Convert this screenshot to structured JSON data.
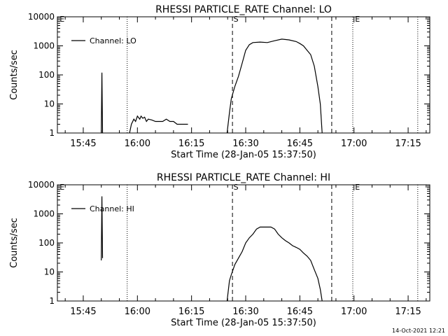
{
  "footer_timestamp": "14-Oct-2021 12:21",
  "chart_data": [
    {
      "type": "line",
      "title": "RHESSI PARTICLE_RATE Channel: LO",
      "xlabel": "Start Time (28-Jan-05 15:37:50)",
      "ylabel": "Counts/sec",
      "xlim": [
        "15:37:50",
        "17:21:00"
      ],
      "ylim": [
        1,
        10000
      ],
      "yscale": "log",
      "x_ticks": [
        "15:45",
        "16:00",
        "16:15",
        "16:30",
        "16:45",
        "17:00",
        "17:15"
      ],
      "y_ticks": [
        "1",
        "10",
        "100",
        "1000",
        "10000"
      ],
      "legend": {
        "entry": "Channel: LO",
        "placement": "top-left"
      },
      "series": [
        {
          "segments": [
            [
              [
                "15:50:00",
                1
              ],
              [
                "15:50:10",
                120
              ],
              [
                "15:50:20",
                1
              ]
            ],
            [
              [
                "15:57:50",
                1
              ],
              [
                "15:58:20",
                2
              ],
              [
                "15:59:00",
                3
              ],
              [
                "15:59:30",
                2.5
              ],
              [
                "16:00:00",
                3.8
              ],
              [
                "16:00:40",
                3
              ],
              [
                "16:01:00",
                3.8
              ],
              [
                "16:01:30",
                3.2
              ],
              [
                "16:02:00",
                3.5
              ],
              [
                "16:02:30",
                2.5
              ],
              [
                "16:03:00",
                3
              ],
              [
                "16:04:00",
                2.8
              ],
              [
                "16:05:00",
                2.5
              ],
              [
                "16:06:00",
                2.5
              ],
              [
                "16:07:00",
                2.5
              ],
              [
                "16:08:00",
                3
              ],
              [
                "16:09:00",
                2.5
              ],
              [
                "16:10:00",
                2.5
              ],
              [
                "16:11:00",
                2
              ],
              [
                "16:12:00",
                2
              ],
              [
                "16:13:00",
                2
              ],
              [
                "16:14:00",
                2
              ]
            ],
            [
              [
                "16:24:50",
                1
              ],
              [
                "16:25:30",
                5
              ],
              [
                "16:26:00",
                15
              ],
              [
                "16:27:00",
                40
              ],
              [
                "16:28:00",
                90
              ],
              [
                "16:29:00",
                250
              ],
              [
                "16:30:00",
                700
              ],
              [
                "16:31:00",
                1100
              ],
              [
                "16:32:00",
                1300
              ],
              [
                "16:34:00",
                1350
              ],
              [
                "16:36:00",
                1300
              ],
              [
                "16:38:00",
                1500
              ],
              [
                "16:40:00",
                1700
              ],
              [
                "16:42:00",
                1600
              ],
              [
                "16:44:00",
                1400
              ],
              [
                "16:45:00",
                1200
              ],
              [
                "16:46:00",
                1000
              ],
              [
                "16:47:00",
                700
              ],
              [
                "16:48:00",
                500
              ],
              [
                "16:49:00",
                200
              ],
              [
                "16:50:00",
                40
              ],
              [
                "16:50:40",
                10
              ],
              [
                "16:51:10",
                1
              ]
            ]
          ]
        }
      ],
      "vlines": [
        {
          "style": "dotted",
          "x": "15:57:10"
        },
        {
          "style": "dotted",
          "x": "16:59:40"
        },
        {
          "style": "dotted",
          "x": "17:17:40"
        },
        {
          "style": "dashed",
          "x": "16:26:20",
          "label": "S"
        },
        {
          "style": "dashed",
          "x": "16:53:50"
        }
      ],
      "markers": [
        {
          "label": "E",
          "x": "17:00:00"
        },
        {
          "label": "E",
          "x": "15:38:10"
        }
      ]
    },
    {
      "type": "line",
      "title": "RHESSI PARTICLE_RATE Channel: HI",
      "xlabel": "Start Time (28-Jan-05 15:37:50)",
      "ylabel": "Counts/sec",
      "xlim": [
        "15:37:50",
        "17:21:00"
      ],
      "ylim": [
        1,
        10000
      ],
      "yscale": "log",
      "x_ticks": [
        "15:45",
        "16:00",
        "16:15",
        "16:30",
        "16:45",
        "17:00",
        "17:15"
      ],
      "y_ticks": [
        "1",
        "10",
        "100",
        "1000",
        "10000"
      ],
      "legend": {
        "entry": "Channel: HI",
        "placement": "top-left"
      },
      "series": [
        {
          "segments": [
            [
              [
                "15:50:00",
                25
              ],
              [
                "15:50:10",
                4000
              ],
              [
                "15:50:20",
                30
              ]
            ],
            [
              [
                "16:24:50",
                1
              ],
              [
                "16:25:30",
                5
              ],
              [
                "16:26:00",
                8
              ],
              [
                "16:27:00",
                18
              ],
              [
                "16:28:00",
                30
              ],
              [
                "16:29:00",
                50
              ],
              [
                "16:30:00",
                100
              ],
              [
                "16:31:00",
                150
              ],
              [
                "16:32:00",
                200
              ],
              [
                "16:33:00",
                300
              ],
              [
                "16:34:00",
                350
              ],
              [
                "16:36:00",
                350
              ],
              [
                "16:37:00",
                350
              ],
              [
                "16:38:00",
                300
              ],
              [
                "16:39:00",
                200
              ],
              [
                "16:40:00",
                150
              ],
              [
                "16:41:00",
                120
              ],
              [
                "16:42:00",
                100
              ],
              [
                "16:43:00",
                80
              ],
              [
                "16:44:00",
                70
              ],
              [
                "16:45:00",
                60
              ],
              [
                "16:46:00",
                45
              ],
              [
                "16:47:00",
                35
              ],
              [
                "16:48:00",
                25
              ],
              [
                "16:49:00",
                12
              ],
              [
                "16:50:00",
                6
              ],
              [
                "16:50:40",
                2.5
              ],
              [
                "16:51:10",
                1
              ]
            ]
          ]
        }
      ],
      "vlines": [
        {
          "style": "dotted",
          "x": "15:57:10"
        },
        {
          "style": "dotted",
          "x": "16:59:40"
        },
        {
          "style": "dotted",
          "x": "17:17:40"
        },
        {
          "style": "dashed",
          "x": "16:26:20",
          "label": "S"
        },
        {
          "style": "dashed",
          "x": "16:53:50"
        }
      ],
      "markers": [
        {
          "label": "E",
          "x": "17:00:00"
        },
        {
          "label": "E",
          "x": "15:38:10"
        }
      ]
    }
  ]
}
